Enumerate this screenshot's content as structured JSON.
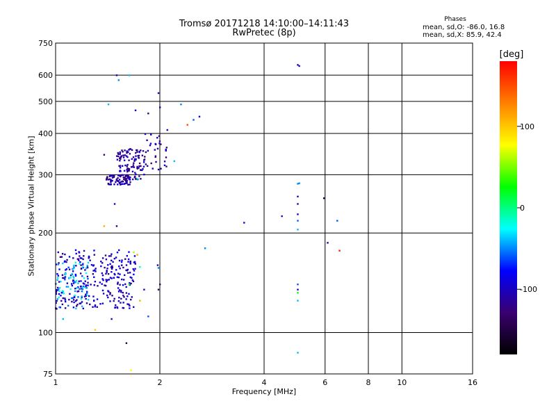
{
  "chart_data": {
    "type": "scatter",
    "title": "Tromsø 20171218 14:10:00–14:11:43",
    "subtitle": "RwPretec (8p)",
    "xlabel": "Frequency [MHz]",
    "ylabel": "Stationary phase Virtual Height [km]",
    "x_scale": "log",
    "y_scale": "log",
    "xlim": [
      1,
      16
    ],
    "ylim": [
      75,
      750
    ],
    "x_ticks": [
      "1",
      "2",
      "4",
      "6",
      "8",
      "10",
      "16"
    ],
    "y_ticks": [
      "75",
      "100",
      "200",
      "300",
      "400",
      "500",
      "600",
      "750"
    ],
    "grid": true,
    "colorbar": {
      "label": "[deg]",
      "range": [
        -180,
        180
      ],
      "ticks": [
        "100",
        "0",
        "-100"
      ],
      "colors": [
        "#000000",
        "#3a0070",
        "#0000ff",
        "#00ffff",
        "#00ff00",
        "#ffff00",
        "#ff8000",
        "#ff0000"
      ]
    },
    "phases": {
      "heading": "Phases",
      "o_line": "mean, sd,O: -86.0, 16.8",
      "x_line": "mean, sd,X: 85.9, 42.4"
    },
    "clusters": [
      {
        "x_range": [
          1.0,
          1.7
        ],
        "y_range": [
          118,
          178
        ],
        "phase": -100,
        "count": 300
      },
      {
        "x_range": [
          1.0,
          1.25
        ],
        "y_range": [
          118,
          165
        ],
        "phase": -40,
        "count": 70
      },
      {
        "x_range": [
          1.4,
          1.65
        ],
        "y_range": [
          280,
          300
        ],
        "phase": -110,
        "count": 70
      },
      {
        "x_range": [
          1.5,
          1.8
        ],
        "y_range": [
          290,
          360
        ],
        "phase": -110,
        "count": 120
      },
      {
        "x_range": [
          1.8,
          2.1
        ],
        "y_range": [
          310,
          400
        ],
        "phase": -110,
        "count": 35
      }
    ],
    "points": [
      {
        "x": 1.5,
        "y": 600,
        "phase": -100
      },
      {
        "x": 1.63,
        "y": 600,
        "phase": -40
      },
      {
        "x": 1.52,
        "y": 580,
        "phase": -50
      },
      {
        "x": 1.98,
        "y": 530,
        "phase": -100
      },
      {
        "x": 2.3,
        "y": 490,
        "phase": -50
      },
      {
        "x": 1.42,
        "y": 490,
        "phase": -40
      },
      {
        "x": 1.7,
        "y": 470,
        "phase": -100
      },
      {
        "x": 1.85,
        "y": 460,
        "phase": -130
      },
      {
        "x": 2.0,
        "y": 480,
        "phase": -100
      },
      {
        "x": 2.6,
        "y": 450,
        "phase": -100
      },
      {
        "x": 2.5,
        "y": 440,
        "phase": -60
      },
      {
        "x": 2.4,
        "y": 425,
        "phase": 150
      },
      {
        "x": 1.38,
        "y": 345,
        "phase": -130
      },
      {
        "x": 2.1,
        "y": 410,
        "phase": -100
      },
      {
        "x": 2.2,
        "y": 330,
        "phase": -40
      },
      {
        "x": 1.72,
        "y": 292,
        "phase": -10
      },
      {
        "x": 1.48,
        "y": 245,
        "phase": -100
      },
      {
        "x": 1.5,
        "y": 210,
        "phase": -130
      },
      {
        "x": 1.38,
        "y": 210,
        "phase": 110
      },
      {
        "x": 1.68,
        "y": 175,
        "phase": 60
      },
      {
        "x": 1.72,
        "y": 172,
        "phase": 110
      },
      {
        "x": 1.97,
        "y": 160,
        "phase": -100
      },
      {
        "x": 1.98,
        "y": 157,
        "phase": -50
      },
      {
        "x": 1.75,
        "y": 158,
        "phase": -10
      },
      {
        "x": 1.63,
        "y": 140,
        "phase": 20
      },
      {
        "x": 1.8,
        "y": 135,
        "phase": -100
      },
      {
        "x": 1.98,
        "y": 135,
        "phase": -130
      },
      {
        "x": 2.0,
        "y": 140,
        "phase": -130
      },
      {
        "x": 1.75,
        "y": 125,
        "phase": 110
      },
      {
        "x": 1.85,
        "y": 112,
        "phase": -60
      },
      {
        "x": 1.45,
        "y": 110,
        "phase": -100
      },
      {
        "x": 1.3,
        "y": 102,
        "phase": 100
      },
      {
        "x": 1.6,
        "y": 93,
        "phase": -150
      },
      {
        "x": 1.65,
        "y": 77,
        "phase": 80
      },
      {
        "x": 1.05,
        "y": 110,
        "phase": -40
      },
      {
        "x": 2.7,
        "y": 180,
        "phase": -50
      },
      {
        "x": 3.5,
        "y": 215,
        "phase": -100
      },
      {
        "x": 4.5,
        "y": 225,
        "phase": -100
      },
      {
        "x": 5.0,
        "y": 645,
        "phase": -100
      },
      {
        "x": 5.05,
        "y": 640,
        "phase": -100
      },
      {
        "x": 5.0,
        "y": 282,
        "phase": -50
      },
      {
        "x": 5.05,
        "y": 283,
        "phase": -50
      },
      {
        "x": 5.0,
        "y": 258,
        "phase": -100
      },
      {
        "x": 5.0,
        "y": 245,
        "phase": -100
      },
      {
        "x": 5.0,
        "y": 228,
        "phase": -100
      },
      {
        "x": 5.0,
        "y": 218,
        "phase": -60
      },
      {
        "x": 5.0,
        "y": 205,
        "phase": -40
      },
      {
        "x": 5.0,
        "y": 140,
        "phase": -60
      },
      {
        "x": 5.0,
        "y": 135,
        "phase": -100
      },
      {
        "x": 5.0,
        "y": 132,
        "phase": 20
      },
      {
        "x": 5.0,
        "y": 125,
        "phase": -40
      },
      {
        "x": 5.0,
        "y": 87,
        "phase": -40
      },
      {
        "x": 5.95,
        "y": 255,
        "phase": -150
      },
      {
        "x": 6.1,
        "y": 187,
        "phase": -110
      },
      {
        "x": 6.5,
        "y": 218,
        "phase": -60
      },
      {
        "x": 6.6,
        "y": 177,
        "phase": 170
      }
    ]
  }
}
